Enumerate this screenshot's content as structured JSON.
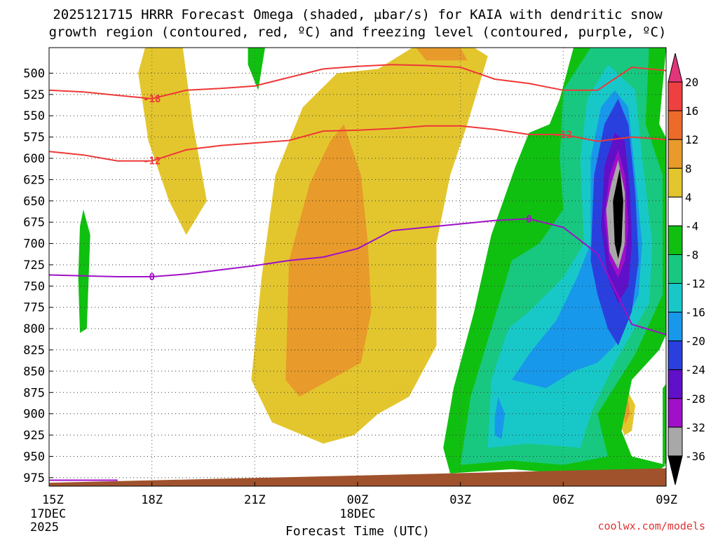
{
  "chart_data": {
    "type": "contour",
    "title_line1": "2025121715 HRRR Forecast Omega (shaded, μbar/s) for KAIA with dendritic snow",
    "title_line2": "growth region (contoured, red, ºC) and freezing level (contoured, purple, ºC)",
    "xlabel": "Forecast Time (UTC)",
    "x_ticks": [
      "15Z",
      "18Z",
      "21Z",
      "00Z",
      "03Z",
      "06Z",
      "09Z"
    ],
    "x_tick_hours": [
      0,
      3,
      6,
      9,
      12,
      15,
      18
    ],
    "x_sublabels": [
      {
        "hour": 0,
        "lines": [
          "17DEC",
          "2025"
        ]
      },
      {
        "hour": 9,
        "lines": [
          "18DEC"
        ]
      }
    ],
    "x_range_hours": [
      0,
      18
    ],
    "y_range_hpa": [
      985,
      470
    ],
    "y_ticks": [
      500,
      525,
      550,
      575,
      600,
      625,
      650,
      675,
      700,
      725,
      750,
      775,
      800,
      825,
      850,
      875,
      900,
      925,
      950,
      975
    ],
    "colorbar": {
      "labels": [
        "20",
        "16",
        "12",
        "8",
        "4",
        "-4",
        "-8",
        "-12",
        "-16",
        "-20",
        "-24",
        "-28",
        "-32",
        "-36"
      ],
      "colors": [
        "#e2357a",
        "#ee4040",
        "#ec6a2a",
        "#e89a2a",
        "#e3c62e",
        "#ffffff",
        "#10c010",
        "#18c880",
        "#18c8c8",
        "#1898ea",
        "#2a40de",
        "#6010c8",
        "#a010c8",
        "#a8a8a8",
        "#000000"
      ]
    },
    "temperature_contours": [
      {
        "value": -18,
        "label": "-18",
        "color": "#ee3838",
        "points": [
          [
            0,
            520
          ],
          [
            1,
            522
          ],
          [
            2,
            526
          ],
          [
            3,
            530
          ],
          [
            4,
            520
          ],
          [
            5,
            518
          ],
          [
            6,
            515
          ],
          [
            7,
            505
          ],
          [
            8,
            495
          ],
          [
            9,
            492
          ],
          [
            10,
            490
          ],
          [
            11,
            491
          ],
          [
            12,
            493
          ],
          [
            13,
            507
          ],
          [
            14,
            512
          ],
          [
            15,
            520
          ],
          [
            16,
            520
          ],
          [
            17,
            493
          ],
          [
            18,
            497
          ]
        ]
      },
      {
        "value": -12,
        "label": "-12",
        "color": "#ee3838",
        "points": [
          [
            0,
            592
          ],
          [
            1,
            596
          ],
          [
            2,
            603
          ],
          [
            3,
            603
          ],
          [
            4,
            590
          ],
          [
            5,
            585
          ],
          [
            6,
            582
          ],
          [
            7,
            579
          ],
          [
            8,
            568
          ],
          [
            9,
            567
          ],
          [
            10,
            565
          ],
          [
            11,
            562
          ],
          [
            12,
            562
          ],
          [
            13,
            566
          ],
          [
            14,
            572
          ],
          [
            15,
            572
          ],
          [
            16,
            580
          ],
          [
            17,
            575
          ],
          [
            18,
            578
          ]
        ]
      },
      {
        "value": 0,
        "label": "0",
        "color": "#a010c8",
        "points": [
          [
            0,
            737
          ],
          [
            1,
            738
          ],
          [
            2,
            739
          ],
          [
            3,
            739
          ],
          [
            4,
            736
          ],
          [
            5,
            731
          ],
          [
            6,
            726
          ],
          [
            7,
            720
          ],
          [
            8,
            716
          ],
          [
            9,
            706
          ],
          [
            10,
            685
          ],
          [
            11,
            681
          ],
          [
            12,
            677
          ],
          [
            13,
            673
          ],
          [
            14,
            671
          ],
          [
            15,
            681
          ],
          [
            16,
            712
          ],
          [
            17,
            795
          ],
          [
            18,
            807
          ]
        ]
      },
      {
        "value": 0,
        "label": "",
        "color": "#a010c8",
        "points": [
          [
            0,
            978
          ],
          [
            2,
            978
          ]
        ]
      }
    ],
    "temperature_labels": [
      {
        "text": "-18",
        "hour": 3,
        "hpa": 530,
        "color": "#ee3838"
      },
      {
        "text": "-12",
        "hour": 3,
        "hpa": 603,
        "color": "#ee3838"
      },
      {
        "text": "-12",
        "hour": 15,
        "hpa": 572,
        "color": "#ee3838"
      },
      {
        "text": "0",
        "hour": 3,
        "hpa": 739,
        "color": "#a010c8"
      },
      {
        "text": "0",
        "hour": 14,
        "hpa": 671,
        "color": "#a010c8"
      }
    ],
    "omega_regions": [
      {
        "color": "#e3c62e",
        "points": [
          [
            2.8,
            470
          ],
          [
            3.9,
            470
          ],
          [
            4.2,
            560
          ],
          [
            4.6,
            650
          ],
          [
            4.0,
            690
          ],
          [
            3.5,
            650
          ],
          [
            2.9,
            580
          ],
          [
            2.6,
            500
          ]
        ]
      },
      {
        "color": "#e3c62e",
        "points": [
          [
            5.9,
            860
          ],
          [
            6.2,
            740
          ],
          [
            6.6,
            620
          ],
          [
            7.4,
            540
          ],
          [
            8.4,
            500
          ],
          [
            9.6,
            495
          ],
          [
            10.6,
            470
          ],
          [
            12.4,
            470
          ],
          [
            12.8,
            480
          ],
          [
            12.2,
            560
          ],
          [
            11.7,
            620
          ],
          [
            11.3,
            700
          ],
          [
            11.3,
            820
          ],
          [
            10.5,
            880
          ],
          [
            9.6,
            900
          ],
          [
            8.9,
            925
          ],
          [
            8.0,
            935
          ],
          [
            6.5,
            910
          ]
        ]
      },
      {
        "color": "#e89a2a",
        "points": [
          [
            6.9,
            860
          ],
          [
            7.0,
            720
          ],
          [
            7.6,
            630
          ],
          [
            8.2,
            580
          ],
          [
            8.6,
            560
          ],
          [
            9.1,
            620
          ],
          [
            9.3,
            700
          ],
          [
            9.4,
            780
          ],
          [
            9.1,
            840
          ],
          [
            8.2,
            860
          ],
          [
            7.3,
            880
          ]
        ]
      },
      {
        "color": "#e89a2a",
        "points": [
          [
            10.7,
            470
          ],
          [
            12.0,
            470
          ],
          [
            12.2,
            485
          ],
          [
            11.0,
            485
          ]
        ]
      },
      {
        "color": "#e3c62e",
        "points": [
          [
            18.5,
            610
          ],
          [
            18.8,
            640
          ],
          [
            18.5,
            670
          ]
        ]
      },
      {
        "color": "#e3c62e",
        "points": [
          [
            16.6,
            890
          ],
          [
            16.9,
            875
          ],
          [
            17.1,
            890
          ],
          [
            17.0,
            920
          ],
          [
            16.8,
            925
          ],
          [
            16.6,
            910
          ]
        ]
      },
      {
        "color": "#e89a2a",
        "points": [
          [
            16.75,
            890
          ],
          [
            16.9,
            885
          ],
          [
            16.95,
            900
          ],
          [
            16.8,
            912
          ]
        ]
      },
      {
        "color": "#10c010",
        "points": [
          [
            0.9,
            680
          ],
          [
            1.0,
            660
          ],
          [
            1.2,
            690
          ],
          [
            1.1,
            800
          ],
          [
            0.9,
            805
          ],
          [
            0.85,
            740
          ]
        ]
      },
      {
        "color": "#10c010",
        "points": [
          [
            5.8,
            470
          ],
          [
            6.3,
            470
          ],
          [
            6.1,
            520
          ],
          [
            5.8,
            490
          ]
        ]
      },
      {
        "color": "#10c010",
        "points": [
          [
            11.7,
            970
          ],
          [
            11.5,
            940
          ],
          [
            11.8,
            870
          ],
          [
            12.4,
            780
          ],
          [
            12.9,
            690
          ],
          [
            13.6,
            610
          ],
          [
            14.0,
            570
          ],
          [
            14.6,
            560
          ],
          [
            14.9,
            530
          ],
          [
            15.3,
            470
          ],
          [
            18.0,
            470
          ],
          [
            17.8,
            560
          ],
          [
            18.3,
            600
          ],
          [
            18.3,
            780
          ],
          [
            17.8,
            825
          ],
          [
            17.0,
            860
          ],
          [
            16.7,
            920
          ],
          [
            17.0,
            950
          ],
          [
            18.0,
            960
          ],
          [
            17.5,
            975
          ],
          [
            16.4,
            975
          ],
          [
            13.5,
            965
          ]
        ]
      },
      {
        "color": "#10c010",
        "points": [
          [
            17.9,
            870
          ],
          [
            18.5,
            840
          ],
          [
            18.5,
            950
          ],
          [
            17.9,
            960
          ]
        ]
      },
      {
        "color": "#18c880",
        "points": [
          [
            12.0,
            960
          ],
          [
            12.3,
            880
          ],
          [
            12.9,
            800
          ],
          [
            13.5,
            720
          ],
          [
            14.3,
            700
          ],
          [
            15.0,
            660
          ],
          [
            14.9,
            600
          ],
          [
            15.0,
            520
          ],
          [
            15.8,
            470
          ],
          [
            17.5,
            470
          ],
          [
            17.4,
            560
          ],
          [
            17.9,
            620
          ],
          [
            17.9,
            760
          ],
          [
            17.1,
            830
          ],
          [
            16.0,
            900
          ],
          [
            16.3,
            950
          ],
          [
            15.0,
            960
          ],
          [
            13.5,
            955
          ]
        ]
      },
      {
        "color": "#18c8c8",
        "points": [
          [
            12.8,
            940
          ],
          [
            12.9,
            860
          ],
          [
            13.4,
            800
          ],
          [
            14.0,
            780
          ],
          [
            15.0,
            740
          ],
          [
            15.6,
            700
          ],
          [
            15.5,
            600
          ],
          [
            15.7,
            530
          ],
          [
            16.3,
            490
          ],
          [
            17.1,
            520
          ],
          [
            17.3,
            600
          ],
          [
            17.6,
            700
          ],
          [
            17.5,
            770
          ],
          [
            16.5,
            840
          ],
          [
            15.8,
            900
          ],
          [
            15.5,
            940
          ],
          [
            14.0,
            935
          ]
        ]
      },
      {
        "color": "#1898ea",
        "points": [
          [
            13.5,
            860
          ],
          [
            14.0,
            830
          ],
          [
            14.8,
            790
          ],
          [
            15.4,
            740
          ],
          [
            15.8,
            700
          ],
          [
            15.8,
            600
          ],
          [
            16.1,
            540
          ],
          [
            16.5,
            520
          ],
          [
            16.9,
            540
          ],
          [
            17.1,
            620
          ],
          [
            17.3,
            700
          ],
          [
            17.2,
            760
          ],
          [
            16.5,
            820
          ],
          [
            16.0,
            840
          ],
          [
            15.3,
            850
          ],
          [
            14.5,
            870
          ]
        ]
      },
      {
        "color": "#1898ea",
        "points": [
          [
            13.0,
            905
          ],
          [
            13.1,
            880
          ],
          [
            13.3,
            900
          ],
          [
            13.2,
            930
          ],
          [
            13.0,
            925
          ]
        ]
      },
      {
        "color": "#2a40de",
        "points": [
          [
            15.8,
            720
          ],
          [
            15.9,
            620
          ],
          [
            16.2,
            560
          ],
          [
            16.6,
            530
          ],
          [
            16.9,
            560
          ],
          [
            17.1,
            640
          ],
          [
            17.2,
            720
          ],
          [
            17.0,
            780
          ],
          [
            16.6,
            820
          ],
          [
            16.3,
            800
          ],
          [
            16.0,
            760
          ]
        ]
      },
      {
        "color": "#6010c8",
        "points": [
          [
            16.1,
            680
          ],
          [
            16.2,
            610
          ],
          [
            16.5,
            570
          ],
          [
            16.8,
            580
          ],
          [
            16.95,
            640
          ],
          [
            17.0,
            700
          ],
          [
            16.9,
            750
          ],
          [
            16.6,
            770
          ],
          [
            16.3,
            740
          ]
        ]
      },
      {
        "color": "#a010c8",
        "points": [
          [
            16.2,
            670
          ],
          [
            16.35,
            620
          ],
          [
            16.6,
            590
          ],
          [
            16.8,
            620
          ],
          [
            16.9,
            680
          ],
          [
            16.8,
            720
          ],
          [
            16.6,
            740
          ],
          [
            16.35,
            720
          ]
        ]
      },
      {
        "color": "#a8a8a8",
        "points": [
          [
            16.25,
            660
          ],
          [
            16.4,
            630
          ],
          [
            16.6,
            602
          ],
          [
            16.8,
            640
          ],
          [
            16.8,
            700
          ],
          [
            16.6,
            730
          ],
          [
            16.35,
            710
          ]
        ]
      },
      {
        "color": "#000000",
        "points": [
          [
            16.45,
            650
          ],
          [
            16.65,
            612
          ],
          [
            16.75,
            650
          ],
          [
            16.7,
            700
          ],
          [
            16.6,
            718
          ],
          [
            16.5,
            700
          ]
        ]
      }
    ],
    "ground": {
      "color": "#a0522d",
      "surface_hpa_start": 981,
      "surface_hpa_end": 964
    }
  },
  "watermark": "coolwx.com/models"
}
